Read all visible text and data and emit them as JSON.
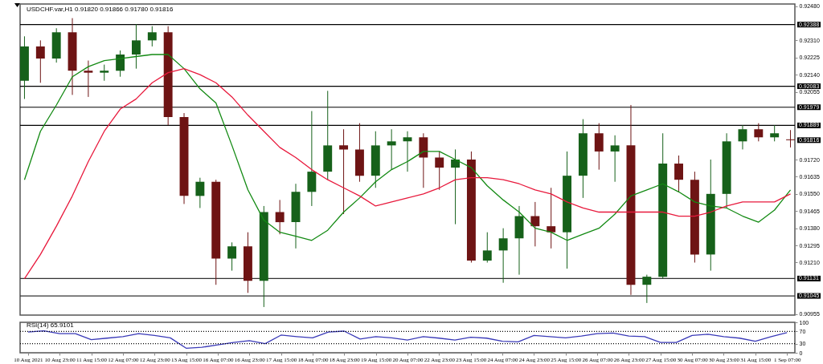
{
  "chart_data": [
    {
      "type": "candlestick",
      "title": "USDCHF.var,H1  0.91820 0.91866 0.91780 0.91816",
      "ohlc": [
        [
          0.9211,
          0.9233,
          0.9202,
          0.9228
        ],
        [
          0.9228,
          0.9231,
          0.921,
          0.9222
        ],
        [
          0.9222,
          0.9237,
          0.922,
          0.9235
        ],
        [
          0.9235,
          0.9242,
          0.9204,
          0.9216
        ],
        [
          0.9216,
          0.9221,
          0.9203,
          0.9215
        ],
        [
          0.9215,
          0.9219,
          0.9211,
          0.9216
        ],
        [
          0.9216,
          0.9226,
          0.9213,
          0.9224
        ],
        [
          0.9224,
          0.9239,
          0.9217,
          0.9231
        ],
        [
          0.9231,
          0.9238,
          0.9228,
          0.9235
        ],
        [
          0.9235,
          0.9238,
          0.9189,
          0.9193
        ],
        [
          0.9193,
          0.9195,
          0.915,
          0.9154
        ],
        [
          0.9154,
          0.9163,
          0.9148,
          0.9161
        ],
        [
          0.9161,
          0.9162,
          0.911,
          0.9123
        ],
        [
          0.9123,
          0.9131,
          0.9117,
          0.9129
        ],
        [
          0.9129,
          0.9136,
          0.9106,
          0.9112
        ],
        [
          0.9112,
          0.9149,
          0.9099,
          0.9146
        ],
        [
          0.9146,
          0.9152,
          0.9135,
          0.9141
        ],
        [
          0.9141,
          0.916,
          0.9128,
          0.9156
        ],
        [
          0.9156,
          0.9196,
          0.9149,
          0.9166
        ],
        [
          0.9166,
          0.9206,
          0.9162,
          0.9179
        ],
        [
          0.9179,
          0.9187,
          0.9145,
          0.9177
        ],
        [
          0.9177,
          0.919,
          0.9161,
          0.9164
        ],
        [
          0.9164,
          0.9186,
          0.9158,
          0.9179
        ],
        [
          0.9179,
          0.9187,
          0.9167,
          0.9181
        ],
        [
          0.9181,
          0.9186,
          0.9166,
          0.9183
        ],
        [
          0.9183,
          0.9185,
          0.9158,
          0.9173
        ],
        [
          0.9173,
          0.9176,
          0.9157,
          0.9168
        ],
        [
          0.9168,
          0.9177,
          0.914,
          0.9172
        ],
        [
          0.9172,
          0.9176,
          0.9121,
          0.9122
        ],
        [
          0.9122,
          0.9136,
          0.9121,
          0.9127
        ],
        [
          0.9127,
          0.9138,
          0.9111,
          0.9133
        ],
        [
          0.9133,
          0.9149,
          0.9115,
          0.9144
        ],
        [
          0.9144,
          0.9151,
          0.9129,
          0.9139
        ],
        [
          0.9139,
          0.9158,
          0.9128,
          0.9136
        ],
        [
          0.9136,
          0.9176,
          0.9118,
          0.9164
        ],
        [
          0.9164,
          0.9192,
          0.9153,
          0.9185
        ],
        [
          0.9185,
          0.919,
          0.9167,
          0.9176
        ],
        [
          0.9176,
          0.9184,
          0.9161,
          0.9179
        ],
        [
          0.9179,
          0.9199,
          0.9105,
          0.911
        ],
        [
          0.911,
          0.9115,
          0.9101,
          0.9114
        ],
        [
          0.9114,
          0.9185,
          0.9113,
          0.917
        ],
        [
          0.917,
          0.9174,
          0.9156,
          0.9162
        ],
        [
          0.9162,
          0.9166,
          0.9121,
          0.9125
        ],
        [
          0.9125,
          0.9172,
          0.9117,
          0.9155
        ],
        [
          0.9155,
          0.9185,
          0.9148,
          0.9181
        ],
        [
          0.9181,
          0.9189,
          0.9177,
          0.9187
        ],
        [
          0.9187,
          0.919,
          0.9181,
          0.9183
        ],
        [
          0.9183,
          0.9189,
          0.9181,
          0.9185
        ],
        [
          0.9182,
          0.91866,
          0.9178,
          0.91816
        ]
      ],
      "colors": [
        "#16611a",
        "#6e1414",
        "#16611a",
        "#6e1414",
        "#6e1414",
        "#16611a",
        "#16611a",
        "#16611a",
        "#16611a",
        "#6e1414",
        "#6e1414",
        "#16611a",
        "#6e1414",
        "#16611a",
        "#6e1414",
        "#16611a",
        "#6e1414",
        "#16611a",
        "#16611a",
        "#16611a",
        "#6e1414",
        "#6e1414",
        "#16611a",
        "#16611a",
        "#16611a",
        "#6e1414",
        "#6e1414",
        "#16611a",
        "#6e1414",
        "#16611a",
        "#16611a",
        "#16611a",
        "#6e1414",
        "#6e1414",
        "#16611a",
        "#16611a",
        "#6e1414",
        "#16611a",
        "#6e1414",
        "#16611a",
        "#16611a",
        "#6e1414",
        "#6e1414",
        "#16611a",
        "#16611a",
        "#16611a",
        "#6e1414",
        "#16611a",
        "#6e1414"
      ],
      "series": [
        {
          "type": "line",
          "color": "#138a13",
          "values": [
            0.9162,
            0.9186,
            0.9199,
            0.9213,
            0.9218,
            0.9221,
            0.9222,
            0.9223,
            0.9224,
            0.9224,
            0.9217,
            0.9207,
            0.92,
            0.9179,
            0.9157,
            0.9142,
            0.9136,
            0.9134,
            0.9132,
            0.9137,
            0.9146,
            0.9153,
            0.9161,
            0.9167,
            0.9171,
            0.9176,
            0.9176,
            0.9172,
            0.9168,
            0.9159,
            0.9152,
            0.9146,
            0.9138,
            0.9136,
            0.9132,
            0.9135,
            0.9138,
            0.9145,
            0.9154,
            0.9157,
            0.916,
            0.9156,
            0.9151,
            0.9149,
            0.9148,
            0.9144,
            0.9141,
            0.9147,
            0.9157
          ]
        },
        {
          "type": "line",
          "color": "#e8193c",
          "values": [
            0.9113,
            0.9125,
            0.9139,
            0.9154,
            0.9171,
            0.9186,
            0.9197,
            0.9202,
            0.921,
            0.9215,
            0.9217,
            0.9214,
            0.921,
            0.9203,
            0.9194,
            0.9186,
            0.9178,
            0.9173,
            0.9167,
            0.9162,
            0.9158,
            0.9154,
            0.9149,
            0.9151,
            0.9153,
            0.9155,
            0.9158,
            0.9162,
            0.9163,
            0.9163,
            0.9162,
            0.916,
            0.9157,
            0.9155,
            0.9151,
            0.9148,
            0.9146,
            0.9146,
            0.9146,
            0.9146,
            0.9146,
            0.9144,
            0.9144,
            0.9146,
            0.9149,
            0.9151,
            0.9151,
            0.9151,
            0.9155
          ]
        }
      ],
      "ylim": [
        0.9095,
        0.9249
      ],
      "yticks": [
        {
          "value": 0.9248,
          "label": "0.92480"
        },
        {
          "value": 0.9231,
          "label": "0.92310"
        },
        0.92225,
        {
          "value": 0.9214,
          "label": "0.92140"
        },
        0.92055,
        {
          "value": 0.9172,
          "label": "0.91720"
        },
        0.91635,
        {
          "value": 0.9155,
          "label": "0.91550"
        },
        0.91465,
        {
          "value": 0.9138,
          "label": "0.91380"
        },
        0.91295,
        {
          "value": 0.9121,
          "label": "0.91210"
        },
        0.90955
      ],
      "ref_lines": [
        {
          "axis": "y",
          "value": 0.92388,
          "label": "0.92388",
          "color": "#000000"
        },
        {
          "axis": "y",
          "value": 0.92083,
          "label": "0.92083",
          "color": "#000000"
        },
        {
          "axis": "y",
          "value": 0.91979,
          "label": "0.91979",
          "color": "#000000"
        },
        {
          "axis": "y",
          "value": 0.91889,
          "label": "0.91889",
          "color": "#000000"
        },
        {
          "axis": "y",
          "value": 0.91131,
          "label": "0.91131",
          "color": "#333333"
        },
        {
          "axis": "y",
          "value": 0.91045,
          "label": "0.91045",
          "color": "#333333"
        }
      ],
      "annotations": [
        "0.91816"
      ],
      "tick_labels": "y"
    },
    {
      "type": "line",
      "title": "RSI(14) 65.9101",
      "categories": [
        "10 Aug 2021",
        null,
        "10 Aug 23:00",
        null,
        "11 Aug 15:00",
        null,
        "12 Aug 07:00",
        null,
        "12 Aug 23:00",
        null,
        "13 Aug 15:00",
        null,
        "16 Aug 07:00",
        null,
        "16 Aug 23:00",
        null,
        "17 Aug 15:00",
        null,
        "18 Aug 07:00",
        null,
        "18 Aug 23:00",
        null,
        "19 Aug 15:00",
        null,
        "20 Aug 07:00",
        null,
        "22 Aug 23:00",
        null,
        "23 Aug 15:00",
        null,
        "24 Aug 07:00",
        null,
        "24 Aug 23:00",
        null,
        "25 Aug 15:00",
        null,
        "26 Aug 07:00",
        null,
        "26 Aug 23:00",
        null,
        "27 Aug 15:00",
        null,
        "30 Aug 07:00",
        null,
        "30 Aug 23:00",
        null,
        "31 Aug 15:00",
        null,
        "1 Sep 07:00"
      ],
      "series": [
        {
          "color": "#3a3ab8",
          "values": [
            68,
            72,
            63,
            63,
            43,
            48,
            53,
            63,
            57,
            49,
            15,
            18,
            26,
            34,
            40,
            30,
            58,
            53,
            49,
            68,
            71,
            45,
            53,
            49,
            42,
            53,
            48,
            42,
            51,
            48,
            38,
            36,
            57,
            53,
            49,
            55,
            63,
            65,
            55,
            53,
            34,
            34,
            57,
            61,
            53,
            48,
            38,
            53,
            66
          ]
        }
      ],
      "ylim": [
        0,
        100
      ],
      "yticks": [
        0,
        30,
        70,
        100
      ],
      "ref_lines": [
        {
          "axis": "y",
          "value": 70,
          "line_style": "dotted",
          "color": "#000000"
        },
        {
          "axis": "y",
          "value": 30,
          "line_style": "dotted",
          "color": "#000000"
        }
      ]
    }
  ]
}
